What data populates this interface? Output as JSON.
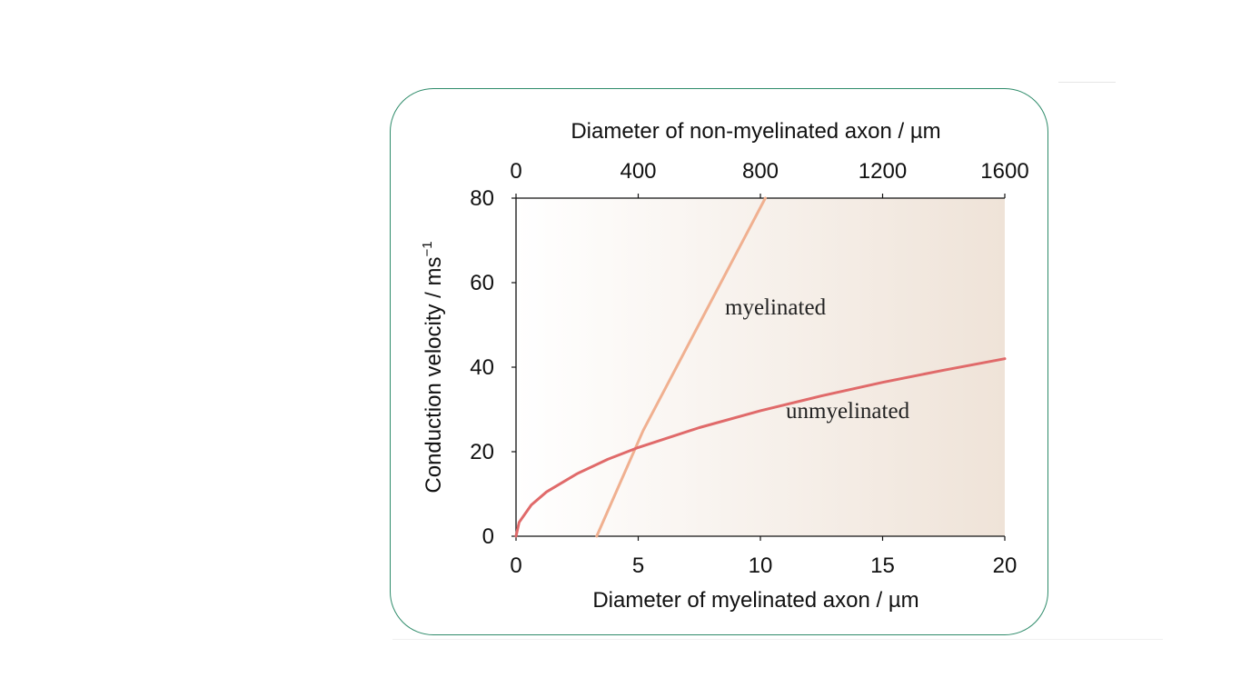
{
  "chart_data": {
    "type": "line",
    "xlabel_bottom": "Diameter of myelinated axon / µm",
    "xlabel_top": "Diameter of non-myelinated axon / µm",
    "ylabel": "Conduction velocity / ms",
    "ylabel_superscript": "−1",
    "x_bottom_ticks": [
      "0",
      "5",
      "10",
      "15",
      "20"
    ],
    "x_top_ticks": [
      "0",
      "400",
      "800",
      "1200",
      "1600"
    ],
    "y_ticks": [
      "0",
      "20",
      "40",
      "60",
      "80"
    ],
    "xlim_bottom": [
      0,
      20
    ],
    "xlim_top": [
      0,
      1600
    ],
    "ylim": [
      0,
      80
    ],
    "series": [
      {
        "name": "myelinated",
        "axis": "bottom",
        "color": "#f0b090",
        "x": [
          3.3,
          5.2,
          10.2
        ],
        "y": [
          0,
          25,
          80
        ]
      },
      {
        "name": "unmyelinated",
        "axis": "top",
        "color": "#e06a6a",
        "x": [
          0,
          10,
          50,
          100,
          200,
          300,
          400,
          600,
          800,
          1000,
          1200,
          1400,
          1600
        ],
        "y": [
          0,
          3.3,
          7.4,
          10.5,
          14.8,
          18.2,
          21.0,
          25.7,
          29.7,
          33.2,
          36.4,
          39.3,
          42.0
        ]
      }
    ],
    "grid": false,
    "legend": "none"
  }
}
